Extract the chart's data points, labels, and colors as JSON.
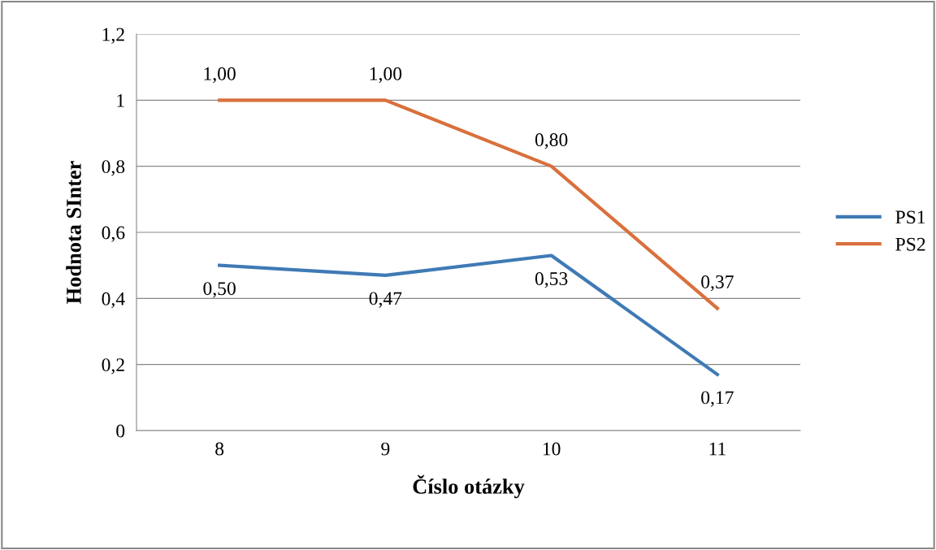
{
  "chart_data": {
    "type": "line",
    "xlabel": "Číslo otázky",
    "ylabel": "Hodnota SInter",
    "categories": [
      "8",
      "9",
      "10",
      "11"
    ],
    "series": [
      {
        "name": "PS1",
        "color": "#3f7ab5",
        "values": [
          0.5,
          0.47,
          0.53,
          0.17
        ],
        "value_labels": [
          "0,50",
          "0,47",
          "0,53",
          "0,17"
        ]
      },
      {
        "name": "PS2",
        "color": "#d9703c",
        "values": [
          1.0,
          1.0,
          0.8,
          0.37
        ],
        "value_labels": [
          "1,00",
          "1,00",
          "0,80",
          "0,37"
        ]
      }
    ],
    "ylim": [
      0,
      1.2
    ],
    "yticks": [
      0,
      {
        "value": 0.2,
        "label": "0,2"
      },
      {
        "value": 0.4,
        "label": "0,4"
      },
      {
        "value": 0.6,
        "label": "0,6"
      },
      {
        "value": 0.8,
        "label": "0,8"
      },
      1,
      {
        "value": 1.2,
        "label": "1,2"
      }
    ],
    "grid": "y",
    "legend": "right",
    "marker": "none",
    "line_style": "solid"
  }
}
